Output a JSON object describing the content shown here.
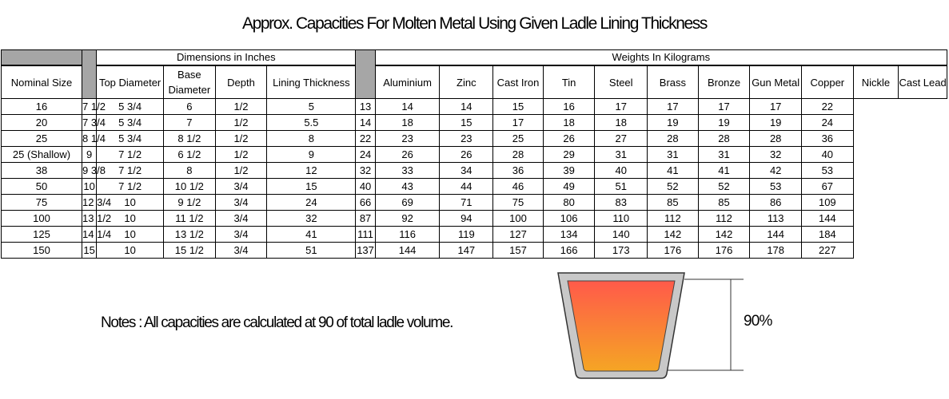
{
  "title": "Approx. Capacities For Molten Metal Using Given Ladle Lining Thickness",
  "table": {
    "group_dimensions": "Dimensions in Inches",
    "group_weights": "Weights In Kilograms",
    "headers": {
      "nominal": "Nominal Size",
      "top_diameter": "Top Diameter",
      "base_diameter": "Base Diameter",
      "depth": "Depth",
      "lining": "Lining Thickness",
      "aluminium": "Aluminium",
      "zinc": "Zinc",
      "cast_iron": "Cast Iron",
      "tin": "Tin",
      "steel": "Steel",
      "brass": "Brass",
      "bronze": "Bronze",
      "gun_metal": "Gun Metal",
      "copper": "Copper",
      "nickle": "Nickle",
      "cast_lead": "Cast Lead"
    },
    "rows": [
      [
        "16",
        "7 1/2",
        "5 3/4",
        "6",
        "1/2",
        "5",
        "13",
        "14",
        "14",
        "15",
        "16",
        "17",
        "17",
        "17",
        "17",
        "22"
      ],
      [
        "20",
        "7 3/4",
        "5 3/4",
        "7",
        "1/2",
        "5.5",
        "14",
        "18",
        "15",
        "17",
        "18",
        "18",
        "19",
        "19",
        "19",
        "24"
      ],
      [
        "25",
        "8 1/4",
        "5 3/4",
        "8 1/2",
        "1/2",
        "8",
        "22",
        "23",
        "23",
        "25",
        "26",
        "27",
        "28",
        "28",
        "28",
        "36"
      ],
      [
        "25 (Shallow)",
        "9",
        "7 1/2",
        "6 1/2",
        "1/2",
        "9",
        "24",
        "26",
        "26",
        "28",
        "29",
        "31",
        "31",
        "31",
        "32",
        "40"
      ],
      [
        "38",
        "9 3/8",
        "7 1/2",
        "8",
        "1/2",
        "12",
        "32",
        "33",
        "34",
        "36",
        "39",
        "40",
        "41",
        "41",
        "42",
        "53"
      ],
      [
        "50",
        "10",
        "7 1/2",
        "10 1/2",
        "3/4",
        "15",
        "40",
        "43",
        "44",
        "46",
        "49",
        "51",
        "52",
        "52",
        "53",
        "67"
      ],
      [
        "75",
        "12 3/4",
        "10",
        "9 1/2",
        "3/4",
        "24",
        "66",
        "69",
        "71",
        "75",
        "80",
        "83",
        "85",
        "85",
        "86",
        "109"
      ],
      [
        "100",
        "13 1/2",
        "10",
        "11 1/2",
        "3/4",
        "32",
        "87",
        "92",
        "94",
        "100",
        "106",
        "110",
        "112",
        "112",
        "113",
        "144"
      ],
      [
        "125",
        "14 1/4",
        "10",
        "13 1/2",
        "3/4",
        "41",
        "111",
        "116",
        "119",
        "127",
        "134",
        "140",
        "142",
        "142",
        "144",
        "184"
      ],
      [
        "150",
        "15",
        "10",
        "15 1/2",
        "3/4",
        "51",
        "137",
        "144",
        "147",
        "157",
        "166",
        "173",
        "176",
        "176",
        "178",
        "227"
      ]
    ]
  },
  "notes": "Notes : All capacities are calculated at 90 of total ladle volume.",
  "diagram": {
    "fill_label": "90%",
    "fill_fraction": 0.9,
    "colors": {
      "fill_top": "#ff5a4a",
      "fill_bottom": "#f5a524",
      "ladle_wall": "#c8c8c8",
      "separator": "#a6a6a6"
    }
  }
}
